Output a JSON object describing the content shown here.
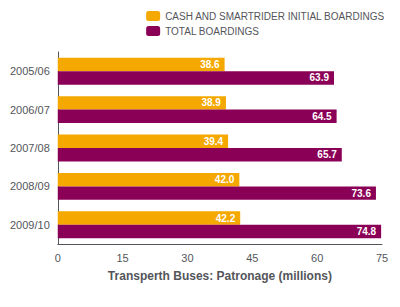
{
  "chart_data": {
    "type": "bar",
    "orientation": "horizontal",
    "xlabel": "Transperth Buses: Patronage (millions)",
    "categories": [
      "2005/06",
      "2006/07",
      "2007/08",
      "2008/09",
      "2009/10"
    ],
    "series": [
      {
        "name": "CASH AND SMARTRIDER INITIAL BOARDINGS",
        "color": "#F5A800",
        "values": [
          38.6,
          38.9,
          39.4,
          42.0,
          42.2
        ],
        "value_labels": [
          "38.6",
          "38.9",
          "39.4",
          "42.0",
          "42.2"
        ]
      },
      {
        "name": "TOTAL BOARDINGS",
        "color": "#8B0057",
        "values": [
          63.9,
          64.5,
          65.7,
          73.6,
          74.8
        ],
        "value_labels": [
          "63.9",
          "64.5",
          "65.7",
          "73.6",
          "74.8"
        ]
      }
    ],
    "xlim": [
      0,
      75
    ],
    "xticks": [
      0,
      15,
      30,
      45,
      60,
      75
    ],
    "data_labels": true,
    "legend": "upper right",
    "grid": false
  }
}
